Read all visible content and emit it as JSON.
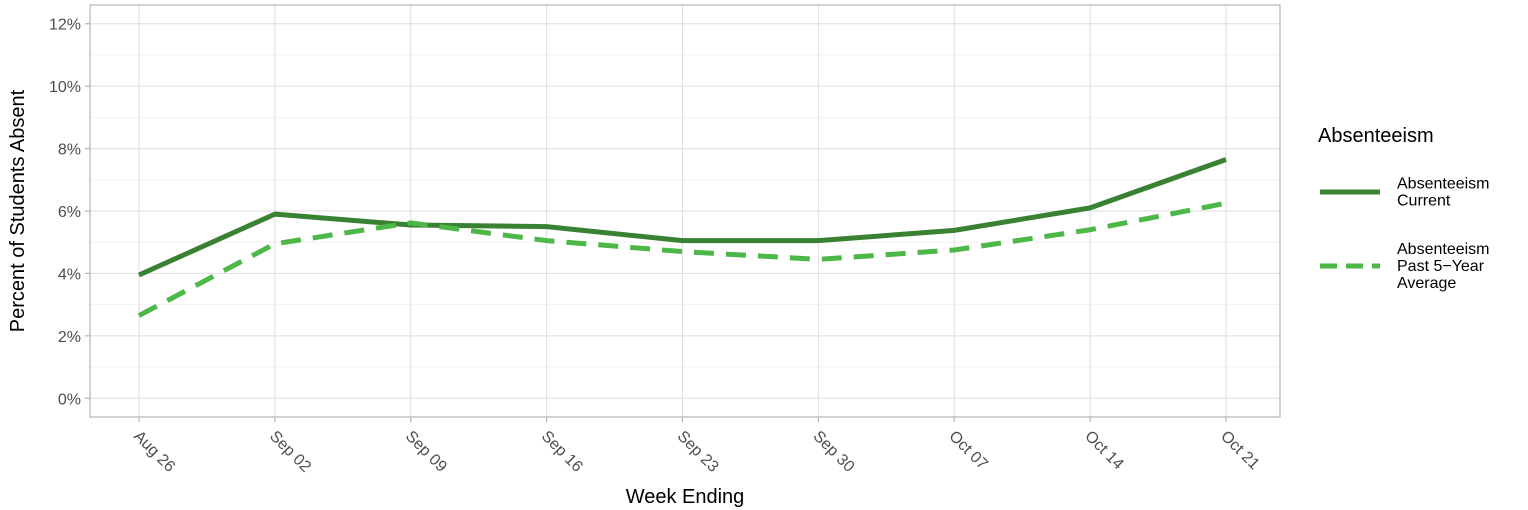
{
  "chart_data": {
    "type": "line",
    "categories": [
      "Aug 26",
      "Sep 02",
      "Sep 09",
      "Sep 16",
      "Sep 23",
      "Sep 30",
      "Oct 07",
      "Oct 14",
      "Oct 21"
    ],
    "series": [
      {
        "name": "Absenteeism Current",
        "legend_lines": [
          "Absenteeism",
          "Current"
        ],
        "values": [
          3.95,
          5.9,
          5.55,
          5.5,
          5.05,
          5.05,
          5.38,
          6.1,
          7.65
        ],
        "color": "#3a8233",
        "style": "solid"
      },
      {
        "name": "Absenteeism Past 5-Year Average",
        "legend_lines": [
          "Absenteeism",
          "Past 5−Year",
          "Average"
        ],
        "values": [
          2.65,
          4.95,
          5.62,
          5.05,
          4.7,
          4.45,
          4.75,
          5.4,
          6.25
        ],
        "color": "#4db847",
        "style": "dashed"
      }
    ],
    "y_ticks": [
      "0%",
      "2%",
      "4%",
      "6%",
      "8%",
      "10%",
      "12%"
    ],
    "y_tick_values": [
      0,
      2,
      4,
      6,
      8,
      10,
      12
    ],
    "ylim": [
      -0.6,
      12.6
    ],
    "xlabel": "Week Ending",
    "ylabel": "Percent of Students Absent",
    "legend_title": "Absenteeism",
    "legend_position": "right",
    "grid": true
  }
}
